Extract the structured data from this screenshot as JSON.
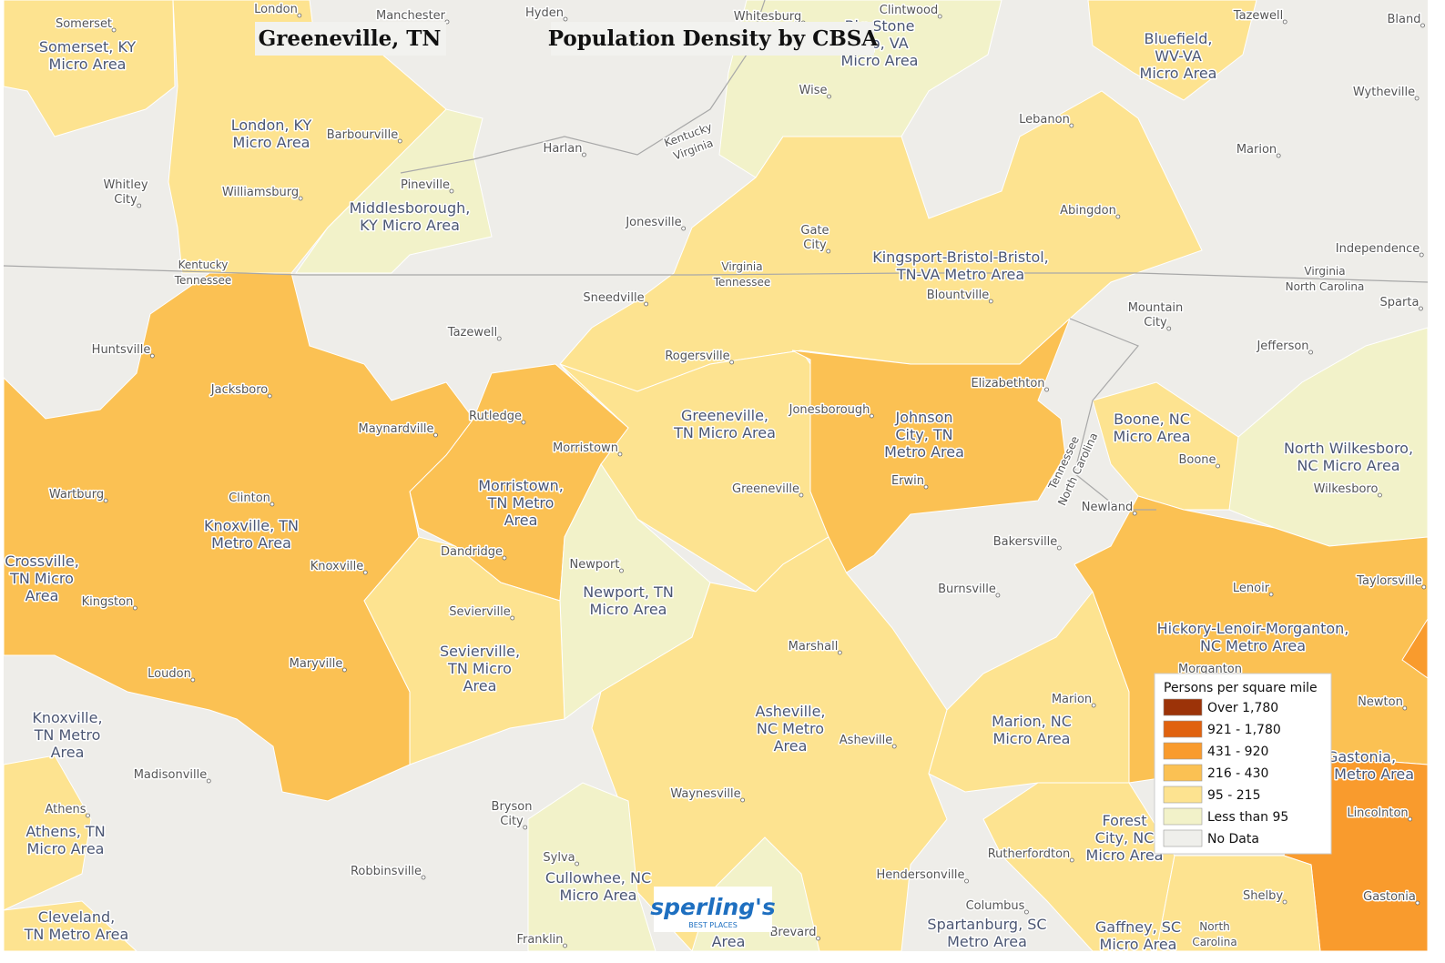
{
  "title": "Greeneville, TN",
  "subtitle": "Population Density by CBSA",
  "areas": [
    [
      "Somerset, KY",
      "Micro Area"
    ],
    [
      "London, KY",
      "Micro Area"
    ],
    [
      "Middlesborough,",
      "KY Micro Area"
    ],
    [
      "Bluefield,",
      "WV-VA",
      "Micro Area"
    ],
    [
      "Big Stone",
      "Gap, VA",
      "Micro Area"
    ],
    [
      "Kingsport-Bristol-Bristol,",
      "TN-VA Metro Area"
    ],
    [
      "Greeneville,",
      "TN Micro Area"
    ],
    [
      "Johnson",
      "City, TN",
      "Metro Area"
    ],
    [
      "Morristown,",
      "TN Metro",
      "Area"
    ],
    [
      "Knoxville, TN",
      "Metro Area"
    ],
    [
      "Crossville,",
      "TN Micro",
      "Area"
    ],
    [
      "Newport, TN",
      "Micro Area"
    ],
    [
      "Sevierville,",
      "TN Micro",
      "Area"
    ],
    [
      "Boone, NC",
      "Micro Area"
    ],
    [
      "North Wilkesboro,",
      "NC Micro Area"
    ],
    [
      "Hickory-Lenoir-Morganton,",
      "NC Metro Area"
    ],
    [
      "Asheville,",
      "NC Metro",
      "Area"
    ],
    [
      "Marion, NC",
      "Micro Area"
    ],
    [
      "Knoxville,",
      "TN Metro",
      "Area"
    ],
    [
      "Athens, TN",
      "Micro Area"
    ],
    [
      "Cullowhee, NC",
      "Micro Area"
    ],
    [
      "Forest",
      "City, NC",
      "Micro Area"
    ],
    [
      "Cleveland,",
      "TN Metro Area"
    ],
    [
      "Spartanburg, SC",
      "Metro Area"
    ],
    [
      "Gaffney, SC",
      "Micro Area"
    ],
    [
      "Gastonia,",
      "NC Metro Area"
    ],
    [
      "Area"
    ]
  ],
  "places": [
    [
      "Somerset"
    ],
    [
      "London"
    ],
    [
      "Manchester"
    ],
    [
      "Hyden"
    ],
    [
      "Whitesburg"
    ],
    [
      "Clintwood"
    ],
    [
      "Tazewell"
    ],
    [
      "Bland"
    ],
    [
      "Wise"
    ],
    [
      "Wytheville"
    ],
    [
      "Barbourville"
    ],
    [
      "Lebanon"
    ],
    [
      "Harlan"
    ],
    [
      "Marion"
    ],
    [
      "Whitley",
      "City"
    ],
    [
      "Pineville"
    ],
    [
      "Williamsburg"
    ],
    [
      "Abingdon"
    ],
    [
      "Jonesville"
    ],
    [
      "Gate",
      "City"
    ],
    [
      "Independence"
    ],
    [
      "Blountville"
    ],
    [
      "Sneedville"
    ],
    [
      "Mountain",
      "City"
    ],
    [
      "Sparta"
    ],
    [
      "Tazewell"
    ],
    [
      "Huntsville"
    ],
    [
      "Jefferson"
    ],
    [
      "Rogersville"
    ],
    [
      "Jacksboro"
    ],
    [
      "Elizabethton"
    ],
    [
      "Jonesborough"
    ],
    [
      "Rutledge"
    ],
    [
      "Maynardville"
    ],
    [
      "Morristown"
    ],
    [
      "Boone"
    ],
    [
      "Greeneville"
    ],
    [
      "Wilkesboro"
    ],
    [
      "Erwin"
    ],
    [
      "Wartburg"
    ],
    [
      "Clinton"
    ],
    [
      "Newland"
    ],
    [
      "Bakersville"
    ],
    [
      "Dandridge"
    ],
    [
      "Newport"
    ],
    [
      "Knoxville"
    ],
    [
      "Burnsville"
    ],
    [
      "Lenoir"
    ],
    [
      "Taylorsville"
    ],
    [
      "Kingston"
    ],
    [
      "Sevierville"
    ],
    [
      "Marshall"
    ],
    [
      "Loudon"
    ],
    [
      "Maryville"
    ],
    [
      "Morganton"
    ],
    [
      "Marion"
    ],
    [
      "Newton"
    ],
    [
      "Asheville"
    ],
    [
      "Madisonville"
    ],
    [
      "Waynesville"
    ],
    [
      "Lincolnton"
    ],
    [
      "Athens"
    ],
    [
      "Bryson",
      "City"
    ],
    [
      "Sylva"
    ],
    [
      "Rutherfordton"
    ],
    [
      "Robbinsville"
    ],
    [
      "Hendersonville"
    ],
    [
      "Shelby"
    ],
    [
      "Gastonia"
    ],
    [
      "Columbus"
    ],
    [
      "Franklin"
    ],
    [
      "Brevard"
    ]
  ],
  "borders": [
    [
      "Kentucky",
      "Virginia"
    ],
    [
      "Kentucky",
      "Tennessee"
    ],
    [
      "Virginia",
      "Tennessee"
    ],
    [
      "Virginia",
      "North Carolina"
    ],
    [
      "Tennessee",
      "North Carolina"
    ],
    [
      "North",
      "Carolina"
    ]
  ],
  "legend": {
    "title": "Persons per square mile",
    "items": [
      {
        "label": "Over 1,780",
        "color": "#9c3308"
      },
      {
        "label": "921 - 1,780",
        "color": "#e0620f"
      },
      {
        "label": "431 - 920",
        "color": "#f99b2d"
      },
      {
        "label": "216 - 430",
        "color": "#fbc153"
      },
      {
        "label": "95 - 215",
        "color": "#fde390"
      },
      {
        "label": "Less than 95",
        "color": "#f2f2c9"
      },
      {
        "label": "No Data",
        "color": "#efefeb"
      }
    ]
  },
  "logo": {
    "name": "sperling's",
    "tagline": "BEST PLACES"
  }
}
